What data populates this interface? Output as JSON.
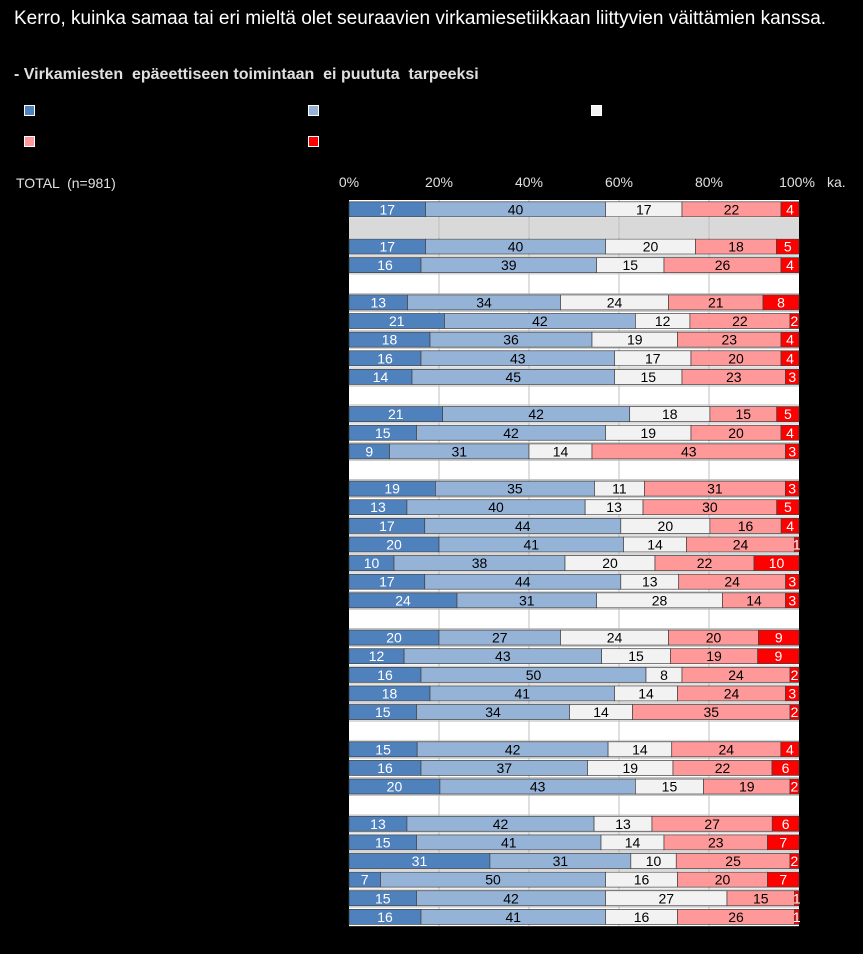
{
  "title": "Kerro, kuinka samaa tai eri mieltä olet seuraavien virkamiesetiikkaan liittyvien väittämien kanssa.",
  "subtitle": "- Virkamiesten  epäeettiseen toimintaan  ei puututa  tarpeeksi",
  "total_label": "TOTAL  (n=981)",
  "unit_label": "ka.",
  "colors": {
    "seg1": "#4f81bd",
    "seg2": "#95b3d7",
    "seg3": "#f2f2f2",
    "seg4": "#ff9999",
    "seg5": "#ff0000",
    "row_band": "#d9d9d9"
  },
  "chart_data": {
    "type": "bar",
    "orientation": "horizontal",
    "stacked": true,
    "percent": true,
    "x_ticks": [
      "0%",
      "20%",
      "40%",
      "60%",
      "80%",
      "100%"
    ],
    "xlim": [
      0,
      100
    ],
    "rows": [
      [
        17,
        40,
        17,
        22,
        4
      ],
      null,
      [
        17,
        40,
        20,
        18,
        5
      ],
      [
        16,
        39,
        15,
        26,
        4
      ],
      null,
      [
        13,
        34,
        24,
        21,
        8
      ],
      [
        21,
        42,
        12,
        22,
        2
      ],
      [
        18,
        36,
        19,
        23,
        4
      ],
      [
        16,
        43,
        17,
        20,
        4
      ],
      [
        14,
        45,
        15,
        23,
        3
      ],
      null,
      [
        21,
        42,
        18,
        15,
        5
      ],
      [
        15,
        42,
        19,
        20,
        4
      ],
      [
        9,
        31,
        14,
        43,
        3
      ],
      null,
      [
        19,
        35,
        11,
        31,
        3
      ],
      [
        13,
        40,
        13,
        30,
        5
      ],
      [
        17,
        44,
        20,
        16,
        4
      ],
      [
        20,
        41,
        14,
        24,
        1
      ],
      [
        10,
        38,
        20,
        22,
        10
      ],
      [
        17,
        44,
        13,
        24,
        3
      ],
      [
        24,
        31,
        28,
        14,
        3
      ],
      null,
      [
        20,
        27,
        24,
        20,
        9
      ],
      [
        12,
        43,
        15,
        19,
        9
      ],
      [
        16,
        50,
        8,
        24,
        2
      ],
      [
        18,
        41,
        14,
        24,
        3
      ],
      [
        15,
        34,
        14,
        35,
        2
      ],
      null,
      [
        15,
        42,
        14,
        24,
        4
      ],
      [
        16,
        37,
        19,
        22,
        6
      ],
      [
        20,
        43,
        15,
        19,
        2
      ],
      null,
      [
        13,
        42,
        13,
        27,
        6
      ],
      [
        15,
        41,
        14,
        23,
        7
      ],
      [
        31,
        31,
        10,
        25,
        2
      ],
      [
        7,
        50,
        16,
        20,
        7
      ],
      [
        15,
        42,
        27,
        15,
        1
      ],
      [
        16,
        41,
        16,
        26,
        1
      ]
    ]
  }
}
